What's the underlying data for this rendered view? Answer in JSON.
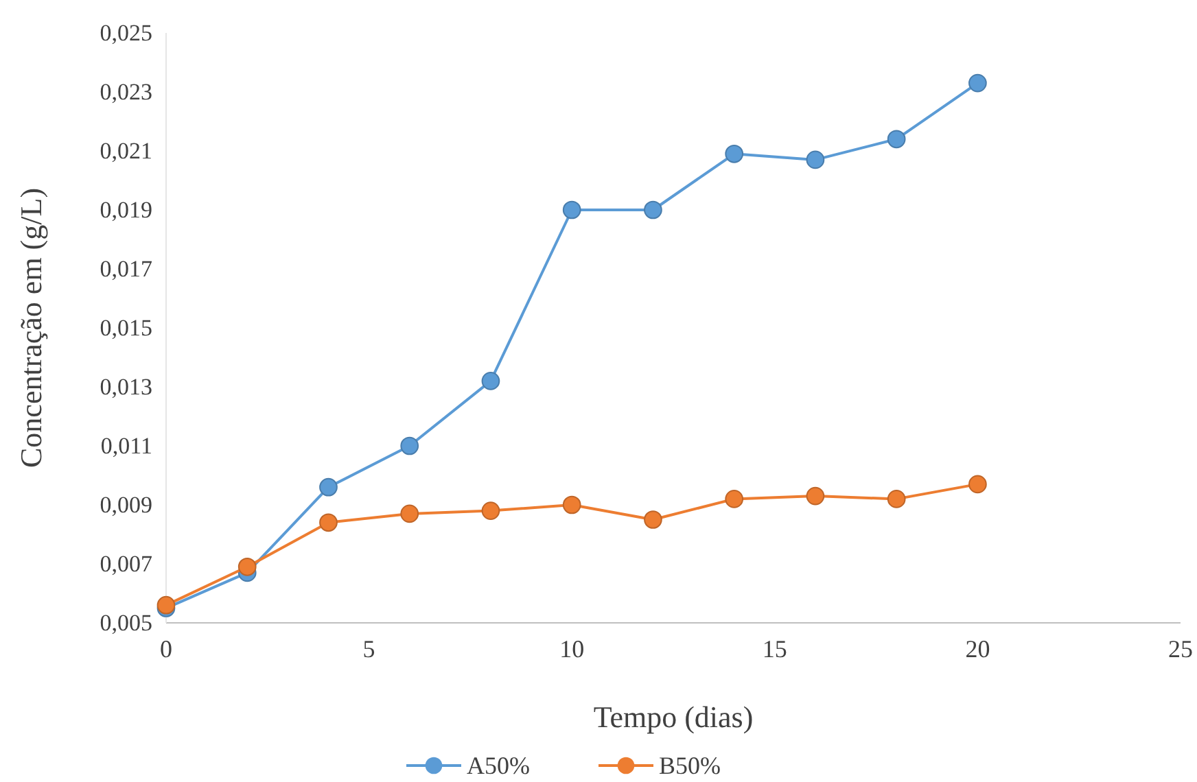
{
  "chart_data": {
    "type": "line",
    "xlabel": "Tempo  (dias)",
    "ylabel": "Concentração em (g/L)",
    "x": [
      0,
      2,
      4,
      6,
      8,
      10,
      12,
      14,
      16,
      18,
      20
    ],
    "series": [
      {
        "name": "A50%",
        "color": "#5b9bd5",
        "values": [
          0.0055,
          0.0067,
          0.0096,
          0.011,
          0.0132,
          0.019,
          0.019,
          0.0209,
          0.0207,
          0.0214,
          0.0233
        ]
      },
      {
        "name": "B50%",
        "color": "#ed7d31",
        "values": [
          0.0056,
          0.0069,
          0.0084,
          0.0087,
          0.0088,
          0.009,
          0.0085,
          0.0092,
          0.0093,
          0.0092,
          0.0097
        ]
      }
    ],
    "xlim": [
      0,
      25
    ],
    "xticks": [
      0,
      5,
      10,
      15,
      20,
      25
    ],
    "ylim": [
      0.005,
      0.025
    ],
    "yticks": [
      {
        "value": 0.005,
        "label": "0,005"
      },
      {
        "value": 0.007,
        "label": "0,007"
      },
      {
        "value": 0.009,
        "label": "0,009"
      },
      {
        "value": 0.011,
        "label": "0,011"
      },
      {
        "value": 0.013,
        "label": "0,013"
      },
      {
        "value": 0.015,
        "label": "0,015"
      },
      {
        "value": 0.017,
        "label": "0,017"
      },
      {
        "value": 0.019,
        "label": "0,019"
      },
      {
        "value": 0.021,
        "label": "0,021"
      },
      {
        "value": 0.023,
        "label": "0,023"
      },
      {
        "value": 0.025,
        "label": "0,025"
      }
    ],
    "grid": false,
    "legend": "bottom",
    "marker": "circle",
    "line_style": "solid"
  }
}
